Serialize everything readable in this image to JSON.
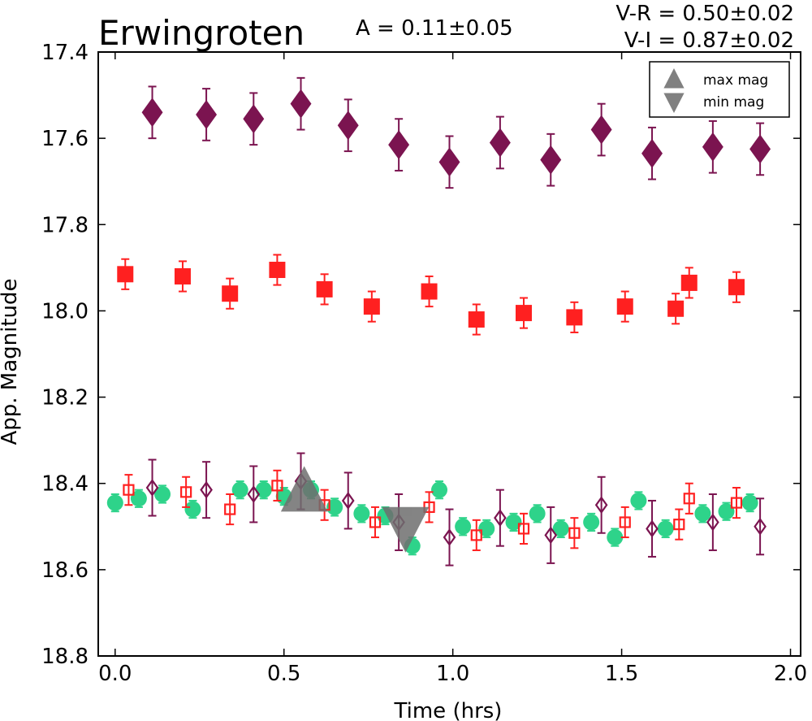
{
  "chart_data": {
    "type": "scatter",
    "title": "Erwingroten",
    "annotations": {
      "amplitude": "A  = 0.11±0.05",
      "v_r": "V-R = 0.50±0.02",
      "v_i": "V-I  = 0.87±0.02"
    },
    "xlabel": "Time (hrs)",
    "ylabel": "App. Magnitude",
    "xlim": [
      -0.05,
      2.03
    ],
    "ylim": [
      18.8,
      17.4
    ],
    "y_inverted": true,
    "xticks": [
      0.0,
      0.5,
      1.0,
      1.5,
      2.0
    ],
    "xtick_labels": [
      "0.0",
      "0.5",
      "1.0",
      "1.5",
      "2.0"
    ],
    "yticks": [
      17.4,
      17.6,
      17.8,
      18.0,
      18.2,
      18.4,
      18.6,
      18.8
    ],
    "ytick_labels": [
      "17.4",
      "17.6",
      "17.8",
      "18.0",
      "18.2",
      "18.4",
      "18.6",
      "18.8"
    ],
    "grid": false,
    "legend": {
      "placement": "top-right",
      "entries": [
        {
          "label": "max mag",
          "marker": "triangle-up",
          "color": "#808080"
        },
        {
          "label": "min mag",
          "marker": "triangle-down",
          "color": "#808080"
        }
      ]
    },
    "extrema": {
      "max": {
        "x": 0.56,
        "y": 18.42
      },
      "min": {
        "x": 0.86,
        "y": 18.5
      }
    },
    "series": [
      {
        "marker": "diamond",
        "color": "#7b1450",
        "fill": "filled",
        "err": 0.06,
        "points": [
          [
            0.11,
            17.54
          ],
          [
            0.27,
            17.545
          ],
          [
            0.41,
            17.555
          ],
          [
            0.55,
            17.52
          ],
          [
            0.69,
            17.57
          ],
          [
            0.84,
            17.615
          ],
          [
            0.99,
            17.655
          ],
          [
            1.14,
            17.61
          ],
          [
            1.29,
            17.65
          ],
          [
            1.44,
            17.58
          ],
          [
            1.59,
            17.635
          ],
          [
            1.77,
            17.62
          ],
          [
            1.91,
            17.625
          ]
        ]
      },
      {
        "marker": "square",
        "color": "#ff2020",
        "fill": "filled",
        "err": 0.035,
        "points": [
          [
            0.03,
            17.915
          ],
          [
            0.2,
            17.92
          ],
          [
            0.34,
            17.96
          ],
          [
            0.48,
            17.905
          ],
          [
            0.62,
            17.95
          ],
          [
            0.76,
            17.99
          ],
          [
            0.93,
            17.955
          ],
          [
            1.07,
            18.02
          ],
          [
            1.21,
            18.005
          ],
          [
            1.36,
            18.015
          ],
          [
            1.51,
            17.99
          ],
          [
            1.66,
            17.995
          ],
          [
            1.7,
            17.935
          ],
          [
            1.84,
            17.945
          ]
        ]
      },
      {
        "marker": "circle",
        "color": "#2ed38a",
        "fill": "filled",
        "err": 0.02,
        "points": [
          [
            0.0,
            18.445
          ],
          [
            0.07,
            18.435
          ],
          [
            0.14,
            18.425
          ],
          [
            0.23,
            18.46
          ],
          [
            0.37,
            18.415
          ],
          [
            0.44,
            18.415
          ],
          [
            0.5,
            18.43
          ],
          [
            0.58,
            18.415
          ],
          [
            0.65,
            18.455
          ],
          [
            0.73,
            18.47
          ],
          [
            0.8,
            18.475
          ],
          [
            0.88,
            18.545
          ],
          [
            0.96,
            18.415
          ],
          [
            1.03,
            18.5
          ],
          [
            1.1,
            18.505
          ],
          [
            1.18,
            18.49
          ],
          [
            1.25,
            18.47
          ],
          [
            1.32,
            18.505
          ],
          [
            1.41,
            18.49
          ],
          [
            1.48,
            18.525
          ],
          [
            1.55,
            18.44
          ],
          [
            1.63,
            18.505
          ],
          [
            1.74,
            18.47
          ],
          [
            1.81,
            18.465
          ],
          [
            1.88,
            18.445
          ]
        ]
      },
      {
        "marker": "square",
        "color": "#ff2020",
        "fill": "open",
        "err": 0.035,
        "points": [
          [
            0.04,
            18.415
          ],
          [
            0.21,
            18.42
          ],
          [
            0.34,
            18.46
          ],
          [
            0.48,
            18.405
          ],
          [
            0.62,
            18.45
          ],
          [
            0.77,
            18.49
          ],
          [
            0.93,
            18.455
          ],
          [
            1.07,
            18.52
          ],
          [
            1.21,
            18.505
          ],
          [
            1.36,
            18.515
          ],
          [
            1.51,
            18.49
          ],
          [
            1.67,
            18.495
          ],
          [
            1.7,
            18.435
          ],
          [
            1.84,
            18.445
          ]
        ]
      },
      {
        "marker": "diamond",
        "color": "#7b1450",
        "fill": "open",
        "err": 0.065,
        "points": [
          [
            0.11,
            18.41
          ],
          [
            0.27,
            18.415
          ],
          [
            0.41,
            18.425
          ],
          [
            0.55,
            18.395
          ],
          [
            0.69,
            18.44
          ],
          [
            0.84,
            18.49
          ],
          [
            0.99,
            18.525
          ],
          [
            1.14,
            18.48
          ],
          [
            1.29,
            18.52
          ],
          [
            1.44,
            18.45
          ],
          [
            1.59,
            18.505
          ],
          [
            1.77,
            18.49
          ],
          [
            1.91,
            18.5
          ]
        ]
      }
    ]
  }
}
